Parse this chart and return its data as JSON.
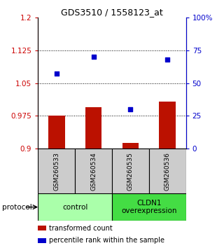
{
  "title": "GDS3510 / 1558123_at",
  "samples": [
    "GSM260533",
    "GSM260534",
    "GSM260535",
    "GSM260536"
  ],
  "transformed_counts": [
    0.976,
    0.995,
    0.913,
    1.008
  ],
  "percentile_ranks": [
    57,
    70,
    30,
    68
  ],
  "groups": [
    {
      "label": "control",
      "color": "#aaffaa",
      "span": [
        0,
        2
      ]
    },
    {
      "label": "CLDN1\noverexpression",
      "color": "#44dd44",
      "span": [
        2,
        4
      ]
    }
  ],
  "ylim_left": [
    0.9,
    1.2
  ],
  "ylim_right": [
    0,
    100
  ],
  "yticks_left": [
    0.9,
    0.975,
    1.05,
    1.125,
    1.2
  ],
  "yticks_left_labels": [
    "0.9",
    "0.975",
    "1.05",
    "1.125",
    "1.2"
  ],
  "yticks_right": [
    0,
    25,
    50,
    75,
    100
  ],
  "yticks_right_labels": [
    "0",
    "25",
    "50",
    "75",
    "100%"
  ],
  "bar_color": "#bb1100",
  "dot_color": "#0000cc",
  "grid_yticks": [
    0.975,
    1.05,
    1.125
  ],
  "legend_items": [
    {
      "color": "#bb1100",
      "label": "transformed count"
    },
    {
      "color": "#0000cc",
      "label": "percentile rank within the sample"
    }
  ],
  "protocol_label": "protocol",
  "background_color": "#ffffff"
}
